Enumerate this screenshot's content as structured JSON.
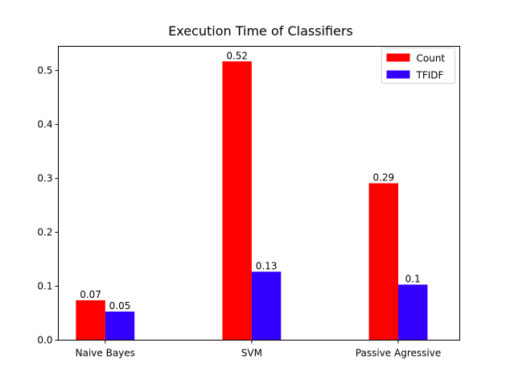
{
  "chart_data": {
    "type": "bar",
    "title": "Execution Time of Classifiers",
    "xlabel": "",
    "ylabel": "",
    "categories": [
      "Naive Bayes",
      "SVM",
      "Passive Agressive"
    ],
    "series": [
      {
        "name": "Count",
        "color": "#ff0000",
        "values": [
          0.074,
          0.517,
          0.291
        ],
        "labels": [
          "0.07",
          "0.52",
          "0.29"
        ]
      },
      {
        "name": "TFIDF",
        "color": "#3300ff",
        "values": [
          0.053,
          0.127,
          0.103
        ],
        "labels": [
          "0.05",
          "0.13",
          "0.1"
        ]
      }
    ],
    "ylim": [
      0,
      0.545
    ],
    "yticks": [
      0.0,
      0.1,
      0.2,
      0.3,
      0.4,
      0.5
    ],
    "ytick_labels": [
      "0.0",
      "0.1",
      "0.2",
      "0.3",
      "0.4",
      "0.5"
    ],
    "grid": false,
    "legend_position": "top-right"
  }
}
